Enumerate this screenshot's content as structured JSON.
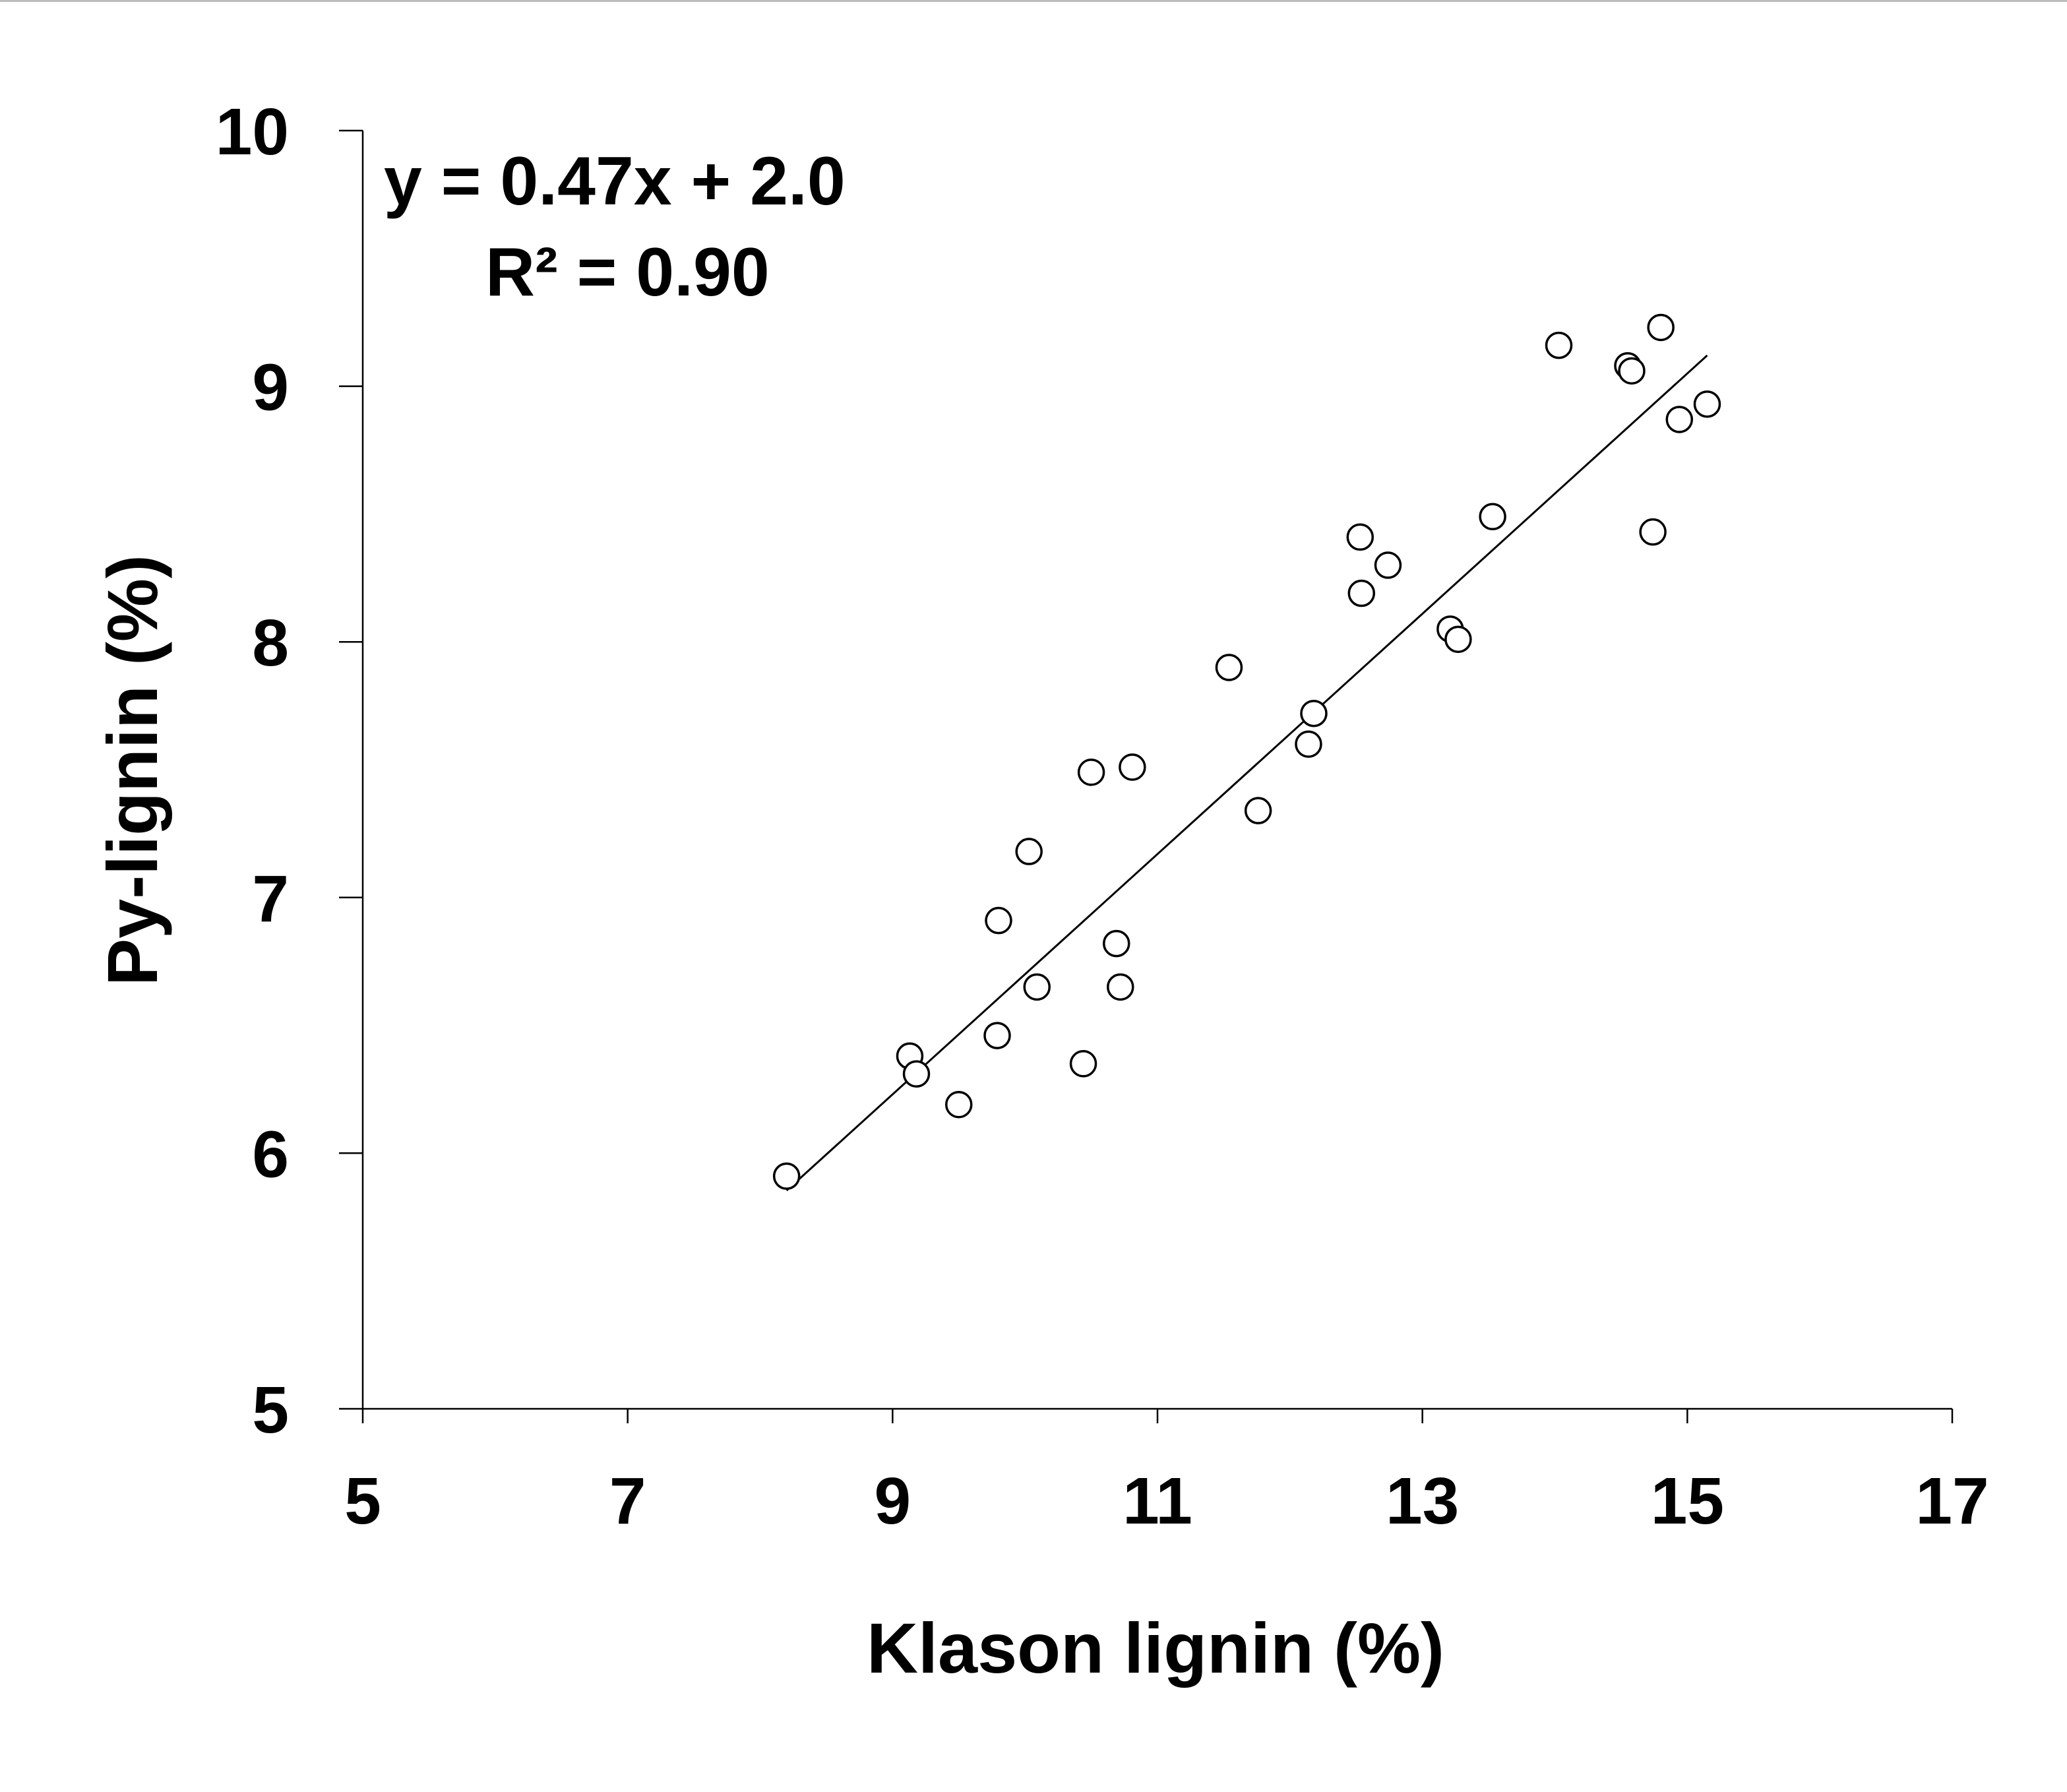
{
  "chart_data": {
    "type": "scatter",
    "title": "",
    "xlabel": "Klason lignin (%)",
    "ylabel": "Py-lignin (%)",
    "xlim": [
      5,
      17
    ],
    "ylim": [
      5,
      10
    ],
    "xticks": [
      "5",
      "7",
      "9",
      "11",
      "13",
      "15",
      "17"
    ],
    "yticks": [
      "5",
      "6",
      "7",
      "8",
      "9",
      "10"
    ],
    "grid": false,
    "legend": "none",
    "annotations": [
      "y = 0.47x + 2.0",
      "R² = 0.90"
    ],
    "trendline": {
      "slope": 0.47,
      "intercept": 2.0,
      "x_range": [
        8.2,
        15.15
      ]
    },
    "series": [
      {
        "marker": "open-circle",
        "points": [
          [
            8.2,
            5.91
          ],
          [
            9.13,
            6.38
          ],
          [
            9.18,
            6.31
          ],
          [
            9.5,
            6.19
          ],
          [
            9.79,
            6.46
          ],
          [
            9.8,
            6.91
          ],
          [
            10.03,
            7.18
          ],
          [
            10.09,
            6.65
          ],
          [
            10.44,
            6.35
          ],
          [
            10.5,
            7.49
          ],
          [
            10.69,
            6.82
          ],
          [
            10.72,
            6.65
          ],
          [
            10.81,
            7.51
          ],
          [
            11.54,
            7.9
          ],
          [
            11.76,
            7.34
          ],
          [
            12.14,
            7.6
          ],
          [
            12.18,
            7.72
          ],
          [
            12.53,
            8.41
          ],
          [
            12.54,
            8.19
          ],
          [
            12.74,
            8.3
          ],
          [
            13.21,
            8.05
          ],
          [
            13.27,
            8.01
          ],
          [
            13.53,
            8.49
          ],
          [
            14.03,
            9.16
          ],
          [
            14.55,
            9.08
          ],
          [
            14.58,
            9.06
          ],
          [
            14.74,
            8.43
          ],
          [
            14.8,
            9.23
          ],
          [
            14.94,
            8.87
          ],
          [
            15.15,
            8.93
          ]
        ]
      }
    ],
    "colors": {
      "axis": "#000000",
      "marker_stroke": "#000000",
      "marker_fill": "#ffffff",
      "trendline": "#000000"
    }
  }
}
